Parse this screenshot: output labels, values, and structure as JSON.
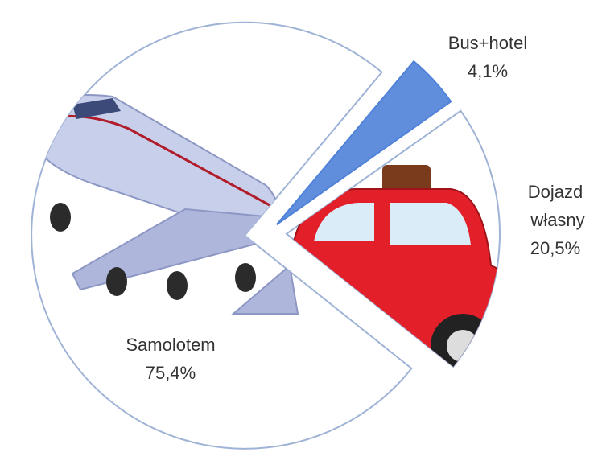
{
  "chart_data": {
    "type": "pie",
    "categories": [
      "Samolotem",
      "Bus+hotel",
      "Dojazd własny"
    ],
    "values": [
      75.4,
      4.1,
      20.5
    ],
    "value_labels": [
      "75,4%",
      "4,1%",
      "20,5%"
    ],
    "colors": [
      "#c7cfea",
      "#4f82d8",
      "#e3202a"
    ]
  }
}
